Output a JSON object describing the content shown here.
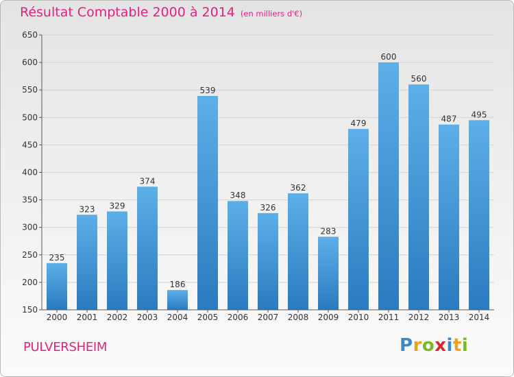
{
  "title": "Résultat Comptable 2000 à 2014",
  "unit_note": "(en milliers d'€)",
  "commune": "PULVERSHEIM",
  "logo": {
    "text": "Proxiti",
    "letters": [
      {
        "char": "P",
        "color": "#3f88c5"
      },
      {
        "char": "r",
        "color": "#e8a21c"
      },
      {
        "char": "o",
        "color": "#7ab829"
      },
      {
        "char": "x",
        "color": "#d9272d"
      },
      {
        "char": "i",
        "color": "#3f88c5"
      },
      {
        "char": "t",
        "color": "#e8a21c"
      },
      {
        "char": "i",
        "color": "#7ab829"
      }
    ]
  },
  "colors": {
    "accent": "#e0227f",
    "bar_top": "#5dafe8",
    "bar_bottom": "#2a7bbf",
    "grid": "#d2d2d2",
    "axis": "#555555",
    "text": "#333333"
  },
  "chart_data": {
    "type": "bar",
    "title": "Résultat Comptable 2000 à 2014",
    "subtitle": "(en milliers d'€)",
    "xlabel": "",
    "ylabel": "",
    "categories": [
      "2000",
      "2001",
      "2002",
      "2003",
      "2004",
      "2005",
      "2006",
      "2007",
      "2008",
      "2009",
      "2010",
      "2011",
      "2012",
      "2013",
      "2014"
    ],
    "values": [
      235,
      323,
      329,
      374,
      186,
      539,
      348,
      326,
      362,
      283,
      479,
      600,
      560,
      487,
      495
    ],
    "ylim": [
      150,
      650
    ],
    "yticks": [
      150,
      200,
      250,
      300,
      350,
      400,
      450,
      500,
      550,
      600,
      650
    ],
    "grid": true,
    "legend": "none"
  }
}
